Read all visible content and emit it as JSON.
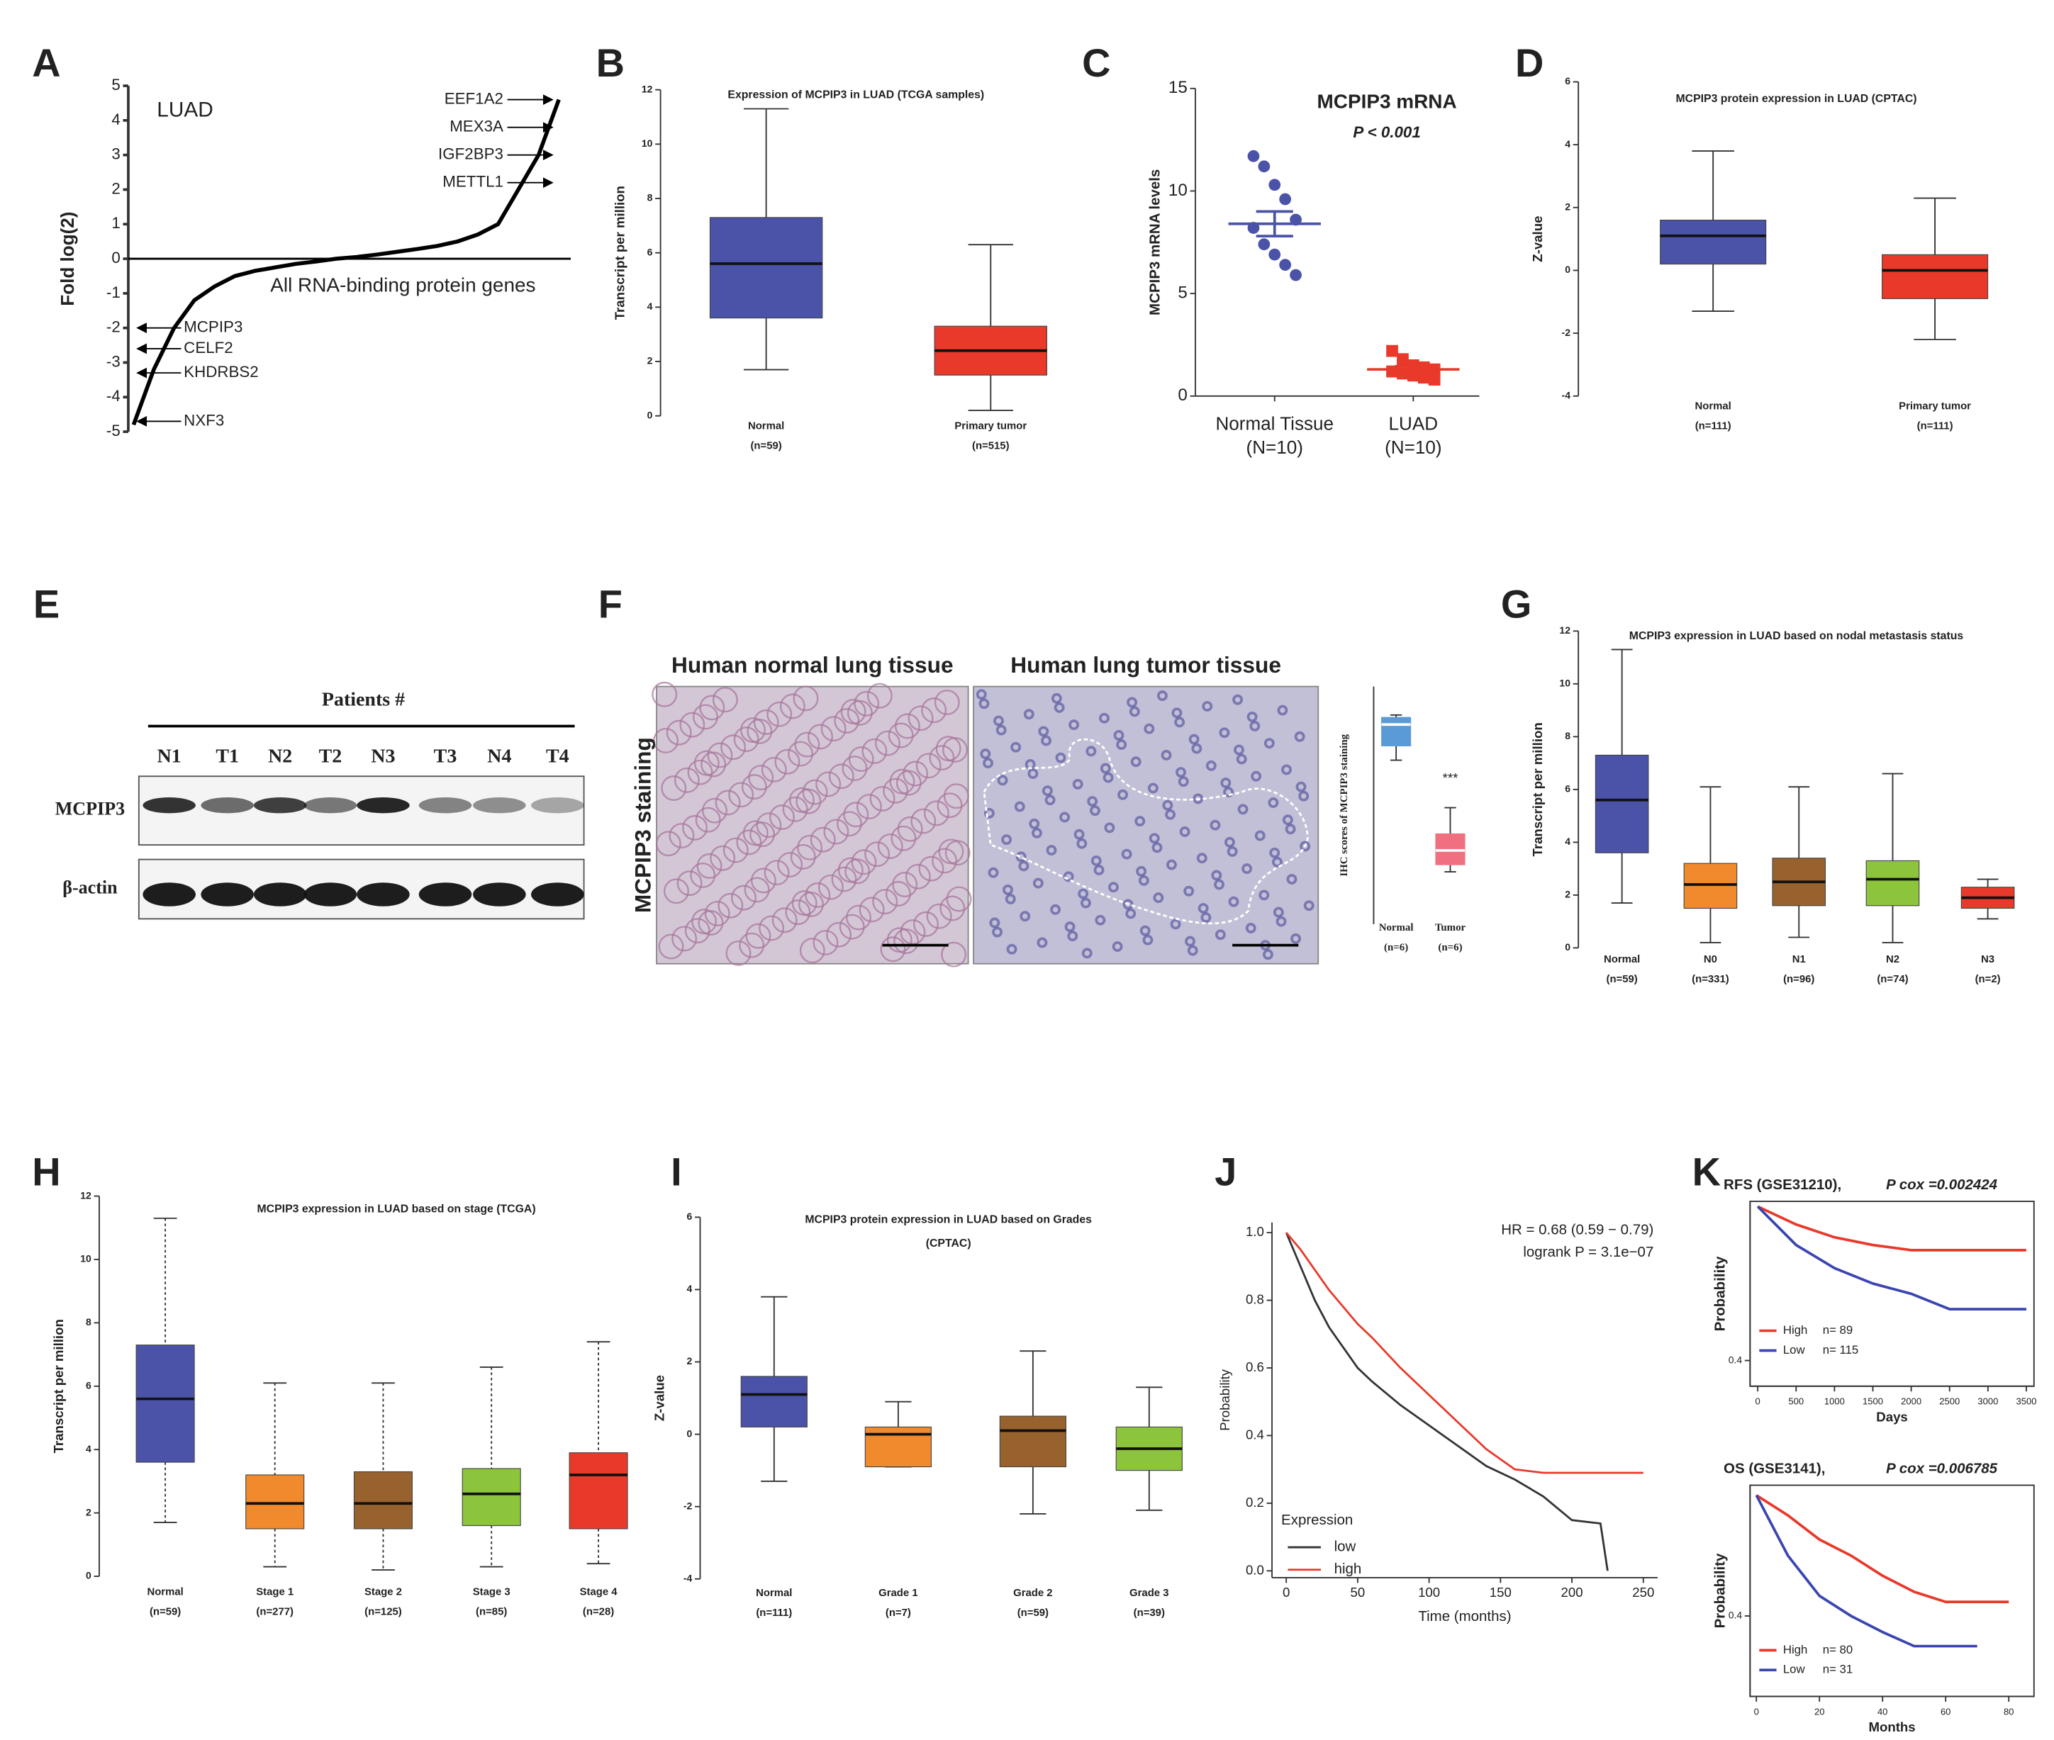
{
  "chart_data": [
    {
      "panel": "A",
      "type": "line",
      "label": "LUAD",
      "note": "All RNA-binding protein genes",
      "ylabel": "Fold  log(2)",
      "ylim": [
        -5,
        5
      ],
      "yticks": [
        -5,
        -4,
        -3,
        -2,
        -1,
        0,
        1,
        2,
        3,
        4,
        5
      ],
      "color": "#000000",
      "values": [
        -4.8,
        -3.2,
        -2.0,
        -1.2,
        -0.8,
        -0.5,
        -0.35,
        -0.25,
        -0.15,
        -0.08,
        0,
        0.05,
        0.12,
        0.2,
        0.28,
        0.37,
        0.5,
        0.7,
        1.0,
        2.0,
        3.0,
        4.6
      ],
      "annotations": [
        {
          "text": "EEF1A2",
          "value": 4.6,
          "color": "#333333"
        },
        {
          "text": "MEX3A",
          "value": 3.8,
          "color": "#333333"
        },
        {
          "text": "IGF2BP3",
          "value": 3.0,
          "color": "#4a55c0"
        },
        {
          "text": "METTL1",
          "value": 2.2,
          "color": "#333333"
        },
        {
          "text": "MCPIP3",
          "value": -2.0,
          "color": "#e8392a"
        },
        {
          "text": "CELF2",
          "value": -2.6,
          "color": "#333333"
        },
        {
          "text": "KHDRBS2",
          "value": -3.3,
          "color": "#333333"
        },
        {
          "text": "NXF3",
          "value": -4.7,
          "color": "#333333"
        }
      ]
    },
    {
      "panel": "B",
      "type": "box",
      "title": "Expression of MCPIP3 in LUAD (TCGA samples)",
      "ylabel": "Transcript per million",
      "ylim": [
        0,
        12
      ],
      "yticks": [
        0,
        2,
        4,
        6,
        8,
        10,
        12
      ],
      "categories": [
        "Normal",
        "Primary tumor"
      ],
      "n_labels": [
        "(n=59)",
        "(n=515)"
      ],
      "colors": [
        "#4b53a8",
        "#e8392a"
      ],
      "boxes": [
        {
          "min": 1.7,
          "q1": 3.6,
          "median": 5.6,
          "q3": 7.3,
          "max": 11.3
        },
        {
          "min": 0.2,
          "q1": 1.5,
          "median": 2.4,
          "q3": 3.3,
          "max": 6.3
        }
      ]
    },
    {
      "panel": "C",
      "type": "dot",
      "title": "MCPIP3 mRNA",
      "subtitle": "P < 0.001",
      "ylabel": "MCPIP3 mRNA levels",
      "ylim": [
        0,
        15
      ],
      "yticks": [
        0,
        5,
        10,
        15
      ],
      "categories": [
        "Normal Tissue",
        "LUAD"
      ],
      "n_labels": [
        "(N=10)",
        "(N=10)"
      ],
      "colors": [
        "#4b53a8",
        "#e8392a"
      ],
      "points": [
        [
          11.7,
          11.2,
          10.3,
          9.6,
          8.6,
          8.2,
          7.4,
          6.9,
          6.4,
          5.9
        ],
        [
          2.2,
          1.8,
          1.5,
          1.4,
          1.3,
          1.2,
          1.1,
          1.0,
          0.9,
          0.8
        ]
      ],
      "means": [
        8.4,
        1.3
      ],
      "sems": [
        0.6,
        0.15
      ]
    },
    {
      "panel": "D",
      "type": "box",
      "title": "MCPIP3 protein expression in LUAD (CPTAC)",
      "ylabel": "Z-value",
      "ylim": [
        -4,
        6
      ],
      "yticks": [
        -4,
        -2,
        0,
        2,
        4,
        6
      ],
      "categories": [
        "Normal",
        "Primary tumor"
      ],
      "n_labels": [
        "(n=111)",
        "(n=111)"
      ],
      "colors": [
        "#4b53a8",
        "#e8392a"
      ],
      "boxes": [
        {
          "min": -1.3,
          "q1": 0.2,
          "median": 1.1,
          "q3": 1.6,
          "max": 3.8
        },
        {
          "min": -2.2,
          "q1": -0.9,
          "median": 0,
          "q3": 0.5,
          "max": 2.3
        }
      ]
    },
    {
      "panel": "E",
      "type": "blot",
      "title": "Patients #",
      "lanes": [
        "N1",
        "T1",
        "N2",
        "T2",
        "N3",
        "T3",
        "N4",
        "T4"
      ],
      "rows": [
        "MCPIP3",
        "β-actin"
      ]
    },
    {
      "panel": "F",
      "type": "micrograph",
      "titles": [
        "Human normal lung tissue",
        "Human lung tumor tissue"
      ],
      "ylabel": "MCPIP3 staining",
      "inset": {
        "type": "box",
        "ylabel": "IHC scores of MCPIP3 staining",
        "ylim": [
          0,
          10
        ],
        "categories": [
          "Normal",
          "Tumor"
        ],
        "n_labels": [
          "(n=6)",
          "(n=6)"
        ],
        "colors": [
          "#5b9bd5",
          "#f07080"
        ],
        "boxes": [
          {
            "min": 6.9,
            "q1": 7.5,
            "median": 8.4,
            "q3": 8.7,
            "max": 8.8
          },
          {
            "min": 2.2,
            "q1": 2.5,
            "median": 3.1,
            "q3": 3.8,
            "max": 4.9
          }
        ],
        "significance": "***"
      }
    },
    {
      "panel": "G",
      "type": "box",
      "title": "MCPIP3 expression in LUAD based on nodal metastasis status",
      "ylabel": "Transcript per million",
      "ylim": [
        0,
        12
      ],
      "yticks": [
        0,
        2,
        4,
        6,
        8,
        10,
        12
      ],
      "categories": [
        "Normal",
        "N0",
        "N1",
        "N2",
        "N3"
      ],
      "n_labels": [
        "(n=59)",
        "(n=331)",
        "(n=96)",
        "(n=74)",
        "(n=2)"
      ],
      "colors": [
        "#4b53a8",
        "#f08a2c",
        "#98622e",
        "#8cc43c",
        "#e8392a"
      ],
      "boxes": [
        {
          "min": 1.7,
          "q1": 3.6,
          "median": 5.6,
          "q3": 7.3,
          "max": 11.3
        },
        {
          "min": 0.2,
          "q1": 1.5,
          "median": 2.4,
          "q3": 3.2,
          "max": 6.1
        },
        {
          "min": 0.4,
          "q1": 1.6,
          "median": 2.5,
          "q3": 3.4,
          "max": 6.1
        },
        {
          "min": 0.2,
          "q1": 1.6,
          "median": 2.6,
          "q3": 3.3,
          "max": 6.6
        },
        {
          "min": 1.1,
          "q1": 1.5,
          "median": 1.9,
          "q3": 2.3,
          "max": 2.6
        }
      ]
    },
    {
      "panel": "H",
      "type": "box",
      "title": "MCPIP3 expression in LUAD based on stage (TCGA)",
      "ylabel": "Transcript per million",
      "ylim": [
        0,
        12
      ],
      "yticks": [
        0,
        2,
        4,
        6,
        8,
        10,
        12
      ],
      "categories": [
        "Normal",
        "Stage 1",
        "Stage 2",
        "Stage 3",
        "Stage 4"
      ],
      "n_labels": [
        "(n=59)",
        "(n=277)",
        "(n=125)",
        "(n=85)",
        "(n=28)"
      ],
      "colors": [
        "#4b53a8",
        "#f08a2c",
        "#98622e",
        "#8cc43c",
        "#e8392a"
      ],
      "boxes": [
        {
          "min": 1.7,
          "q1": 3.6,
          "median": 5.6,
          "q3": 7.3,
          "max": 11.3
        },
        {
          "min": 0.3,
          "q1": 1.5,
          "median": 2.3,
          "q3": 3.2,
          "max": 6.1
        },
        {
          "min": 0.2,
          "q1": 1.5,
          "median": 2.3,
          "q3": 3.3,
          "max": 6.1
        },
        {
          "min": 0.3,
          "q1": 1.6,
          "median": 2.6,
          "q3": 3.4,
          "max": 6.6
        },
        {
          "min": 0.4,
          "q1": 1.5,
          "median": 3.2,
          "q3": 3.9,
          "max": 7.4
        }
      ]
    },
    {
      "panel": "I",
      "type": "box",
      "title": "MCPIP3 protein expression in LUAD based on Grades",
      "subtitle": "(CPTAC)",
      "ylabel": "Z-value",
      "ylim": [
        -4,
        6
      ],
      "yticks": [
        -4,
        -2,
        0,
        2,
        4,
        6
      ],
      "categories": [
        "Normal",
        "Grade 1",
        "Grade 2",
        "Grade 3"
      ],
      "n_labels": [
        "(n=111)",
        "(n=7)",
        "(n=59)",
        "(n=39)"
      ],
      "colors": [
        "#4b53a8",
        "#f08a2c",
        "#98622e",
        "#8cc43c"
      ],
      "boxes": [
        {
          "min": -1.3,
          "q1": 0.2,
          "median": 1.1,
          "q3": 1.6,
          "max": 3.8
        },
        {
          "min": -0.9,
          "q1": -0.9,
          "median": 0,
          "q3": 0.2,
          "max": 0.9
        },
        {
          "min": -2.2,
          "q1": -0.9,
          "median": 0.1,
          "q3": 0.5,
          "max": 2.3
        },
        {
          "min": -2.1,
          "q1": -1.0,
          "median": -0.4,
          "q3": 0.2,
          "max": 1.3
        }
      ]
    },
    {
      "panel": "J",
      "type": "km",
      "annotations": [
        "HR = 0.68 (0.59 − 0.79)",
        "logrank P = 3.1e−07"
      ],
      "xlabel": "Time (months)",
      "ylabel": "Probability",
      "legend_title": "Expression",
      "xlim": [
        -10,
        260
      ],
      "xticks": [
        0,
        50,
        100,
        150,
        200,
        250
      ],
      "ylim": [
        -0.02,
        1.03
      ],
      "yticks": [
        {
          "value": 0,
          "label": "0.0"
        },
        0.2,
        0.4,
        0.6,
        0.8,
        {
          "value": 1,
          "label": "1.0"
        }
      ],
      "series": [
        {
          "name": "low",
          "color": "#333333",
          "x": [
            0,
            10,
            20,
            30,
            40,
            50,
            60,
            80,
            100,
            120,
            140,
            160,
            180,
            200,
            220,
            225
          ],
          "values": [
            1,
            0.9,
            0.8,
            0.72,
            0.66,
            0.6,
            0.56,
            0.49,
            0.43,
            0.37,
            0.31,
            0.27,
            0.22,
            0.15,
            0.14,
            0
          ]
        },
        {
          "name": "high",
          "color": "#e8392a",
          "x": [
            0,
            10,
            20,
            30,
            40,
            50,
            60,
            80,
            100,
            120,
            140,
            160,
            180,
            200,
            220,
            250
          ],
          "values": [
            1,
            0.95,
            0.89,
            0.83,
            0.78,
            0.73,
            0.69,
            0.6,
            0.52,
            0.44,
            0.36,
            0.3,
            0.29,
            0.29,
            0.29,
            0.29
          ]
        }
      ]
    },
    {
      "panel": "K",
      "type": "km",
      "title": "RFS (GSE31210),",
      "subtitle": "P cox =0.002424",
      "xlabel": "Days",
      "ylabel": "Probability",
      "xlim": [
        -100,
        3600
      ],
      "xticks": [
        0,
        500,
        1000,
        1500,
        2000,
        2500,
        3000,
        3500
      ],
      "ylim": [
        0.3,
        1.02
      ],
      "yticks": [
        0.4
      ],
      "legend_n": [
        "n= 89",
        "n= 115"
      ],
      "series": [
        {
          "name": "High",
          "color": "#e8392a",
          "x": [
            0,
            500,
            1000,
            1500,
            2000,
            2500,
            3500
          ],
          "values": [
            1,
            0.93,
            0.88,
            0.85,
            0.83,
            0.83,
            0.83
          ]
        },
        {
          "name": "Low",
          "color": "#3a45b0",
          "x": [
            0,
            500,
            1000,
            1500,
            2000,
            2500,
            3500
          ],
          "values": [
            1,
            0.85,
            0.76,
            0.7,
            0.66,
            0.6,
            0.6
          ]
        }
      ]
    },
    {
      "type": "km",
      "title": "OS (GSE3141),",
      "subtitle": "P cox =0.006785",
      "xlabel": "Months",
      "ylabel": "Probability",
      "xlim": [
        -2,
        88
      ],
      "xticks": [
        0,
        20,
        40,
        60,
        80
      ],
      "ylim": [
        0,
        1.05
      ],
      "yticks": [
        0.4
      ],
      "legend_n": [
        "n= 80",
        "n= 31"
      ],
      "series": [
        {
          "name": "High",
          "color": "#e8392a",
          "x": [
            0,
            10,
            20,
            30,
            40,
            50,
            60,
            70,
            80
          ],
          "values": [
            1,
            0.9,
            0.78,
            0.7,
            0.6,
            0.52,
            0.47,
            0.47,
            0.47
          ]
        },
        {
          "name": "Low",
          "color": "#3a45b0",
          "x": [
            0,
            10,
            20,
            30,
            40,
            50,
            60,
            70
          ],
          "values": [
            1,
            0.7,
            0.5,
            0.4,
            0.32,
            0.25,
            0.25,
            0.25
          ]
        }
      ]
    }
  ]
}
